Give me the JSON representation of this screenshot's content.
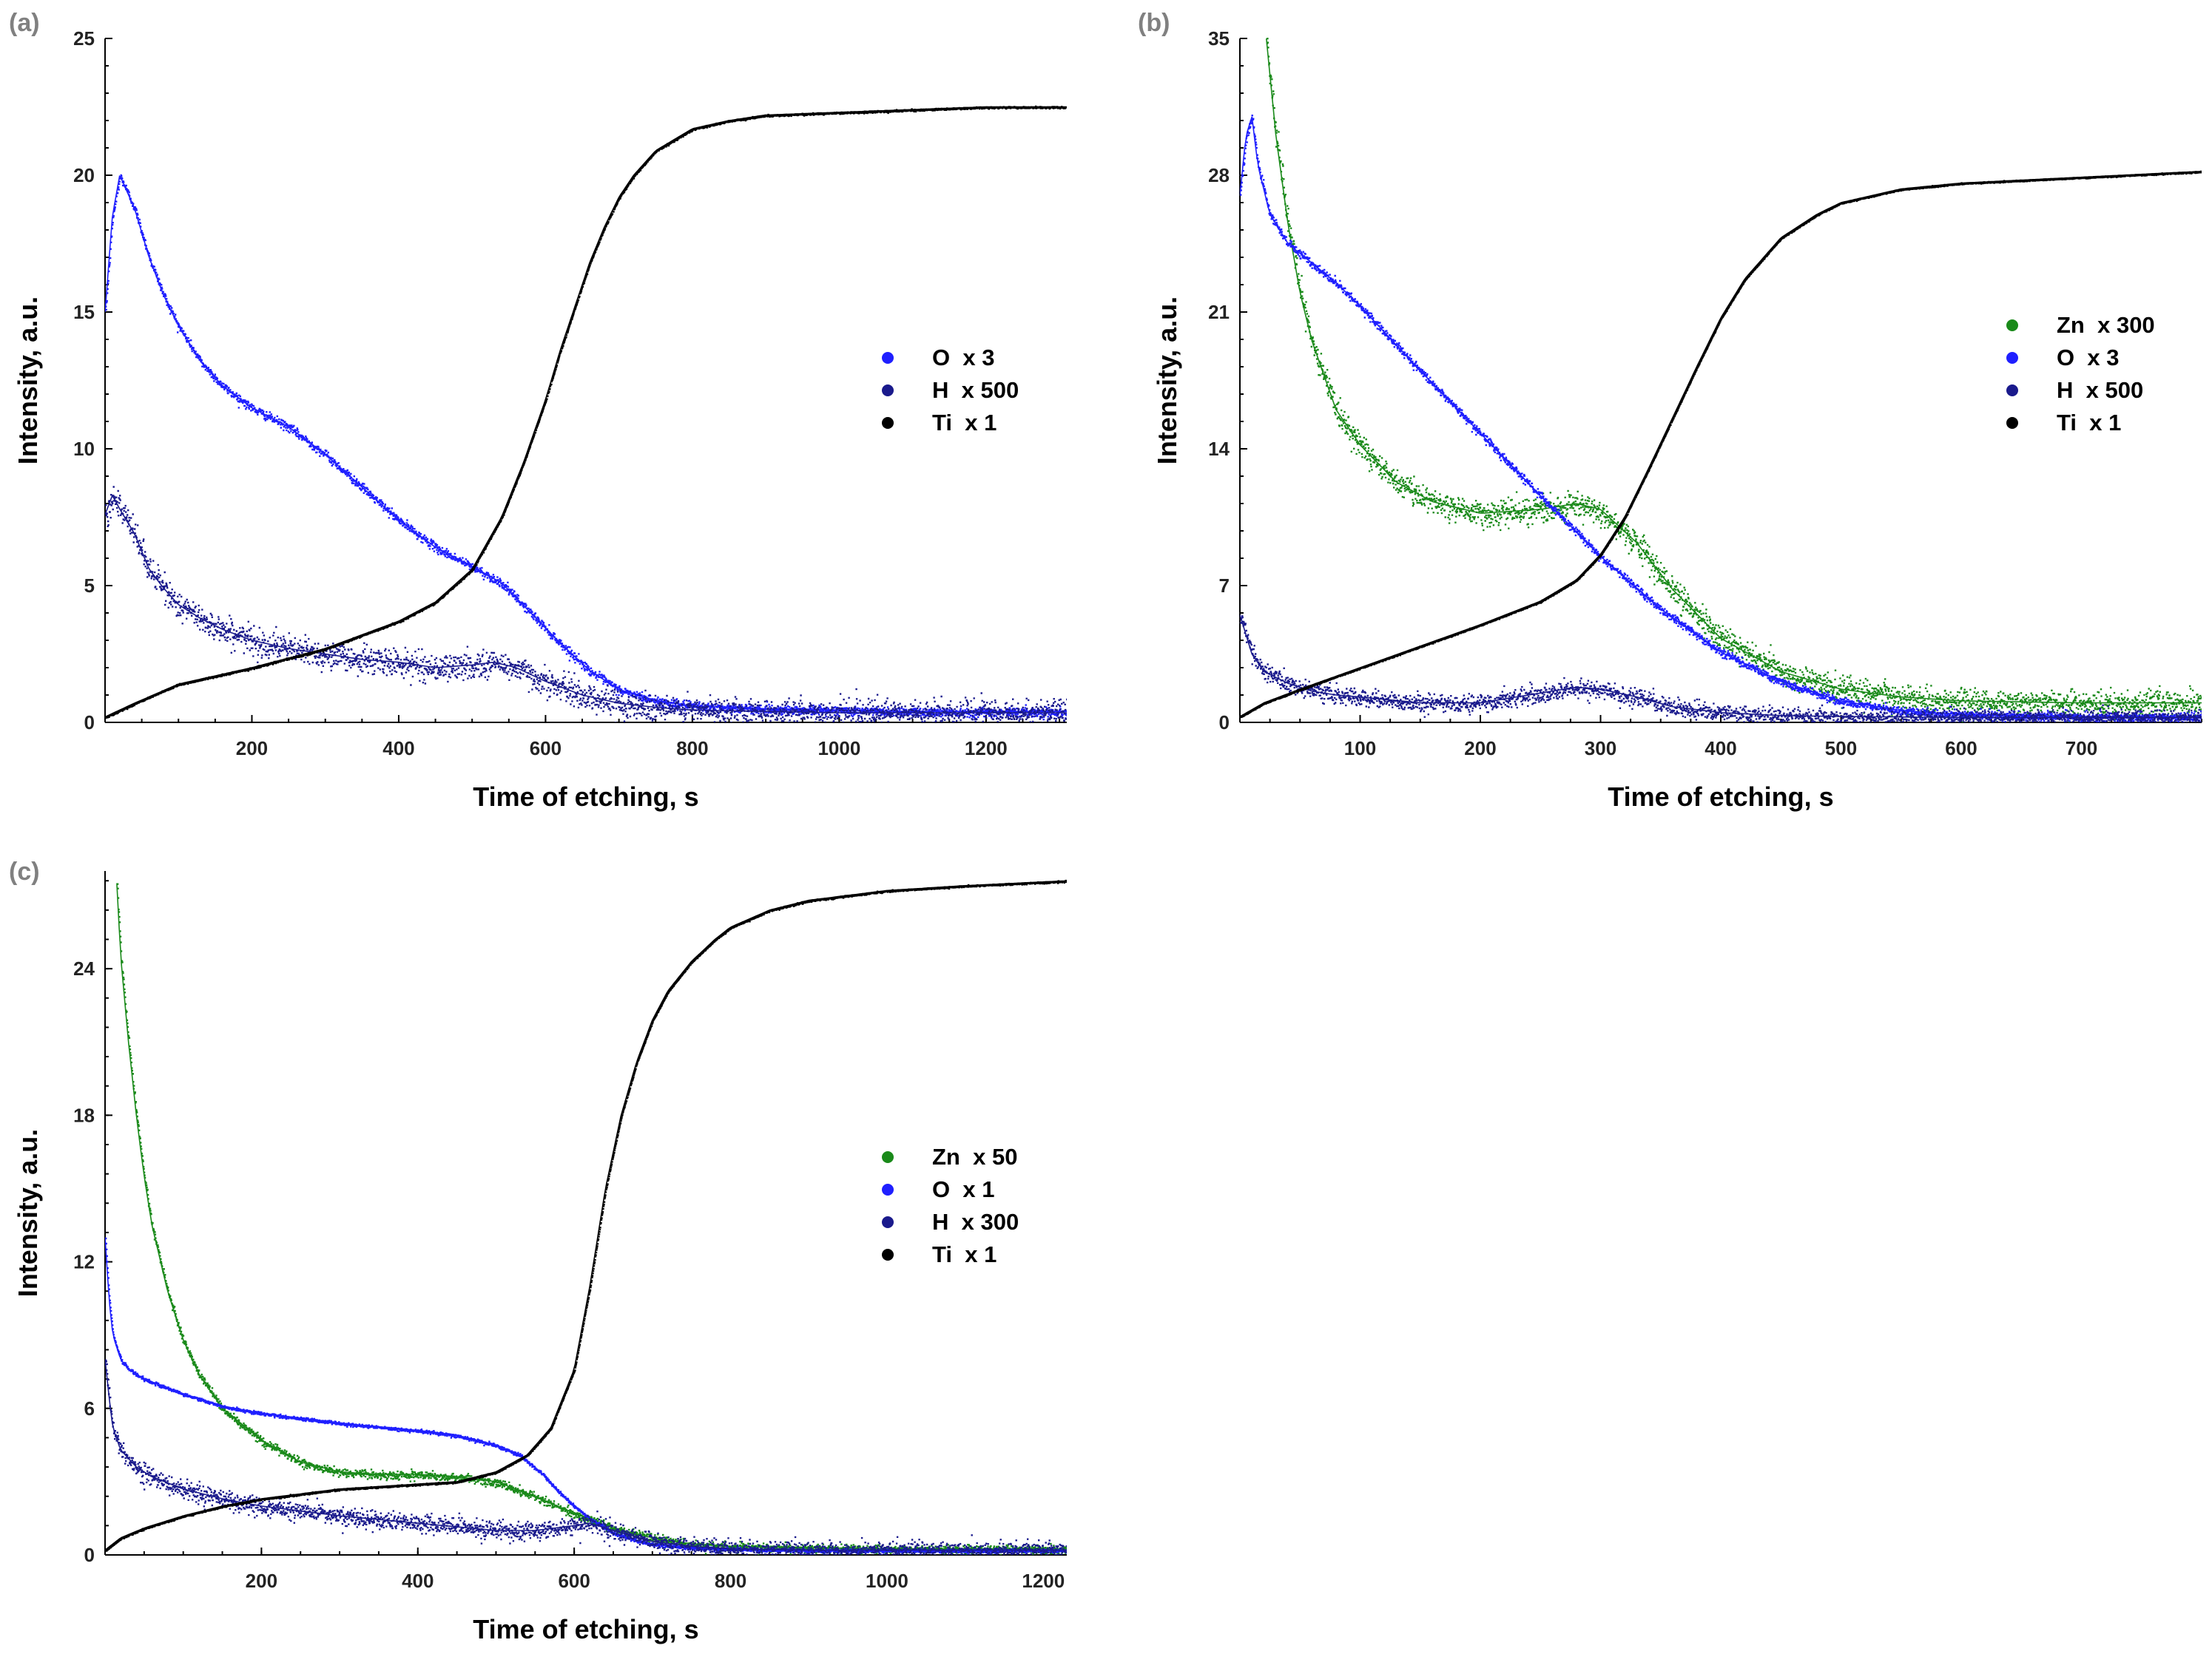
{
  "chart_data": [
    {
      "panel_label": "(a)",
      "type": "scatter",
      "xlabel": "Time of etching, s",
      "ylabel": "Intensity, a.u.",
      "xlim": [
        0,
        1310
      ],
      "ylim": [
        0,
        25
      ],
      "xticks": [
        200,
        400,
        600,
        800,
        1000,
        1200
      ],
      "xtick_labels": [
        "200",
        "400",
        "600",
        "800",
        "1000",
        "1200"
      ],
      "yticks": [
        0,
        5,
        10,
        15,
        20,
        25
      ],
      "ytick_labels": [
        "0",
        "5",
        "10",
        "15",
        "20",
        "25"
      ],
      "legend_position": "right-middle",
      "series": [
        {
          "name": "O  x 3",
          "color": "#1f1fff",
          "noise": 0.15,
          "x": [
            0,
            10,
            20,
            40,
            60,
            80,
            100,
            130,
            160,
            200,
            250,
            300,
            350,
            400,
            450,
            500,
            540,
            580,
            620,
            660,
            700,
            750,
            800,
            900,
            1000,
            1100,
            1200,
            1310
          ],
          "y": [
            15.0,
            18.5,
            20.0,
            18.8,
            17.0,
            15.6,
            14.5,
            13.2,
            12.3,
            11.5,
            10.8,
            9.8,
            8.6,
            7.4,
            6.4,
            5.7,
            5.1,
            4.0,
            2.9,
            1.9,
            1.2,
            0.8,
            0.6,
            0.5,
            0.45,
            0.4,
            0.4,
            0.4
          ]
        },
        {
          "name": "H  x 500",
          "color": "#1a1a8c",
          "noise": 0.45,
          "x": [
            0,
            10,
            20,
            40,
            60,
            80,
            100,
            130,
            160,
            200,
            250,
            300,
            350,
            400,
            450,
            500,
            530,
            560,
            600,
            650,
            700,
            750,
            800,
            900,
            1000,
            1100,
            1200,
            1310
          ],
          "y": [
            7.6,
            8.3,
            7.8,
            6.9,
            5.6,
            4.9,
            4.3,
            3.8,
            3.4,
            3.0,
            2.7,
            2.5,
            2.3,
            2.2,
            2.0,
            2.1,
            2.2,
            2.0,
            1.5,
            1.0,
            0.7,
            0.55,
            0.45,
            0.4,
            0.35,
            0.35,
            0.35,
            0.35
          ]
        },
        {
          "name": "Ti  x 1",
          "color": "#000000",
          "noise": 0.03,
          "x": [
            0,
            40,
            100,
            200,
            300,
            400,
            450,
            500,
            540,
            570,
            600,
            620,
            640,
            660,
            680,
            700,
            720,
            750,
            800,
            850,
            900,
            1000,
            1100,
            1200,
            1310
          ],
          "y": [
            0.2,
            0.7,
            1.4,
            2.0,
            2.7,
            3.7,
            4.4,
            5.6,
            7.5,
            9.5,
            11.8,
            13.6,
            15.2,
            16.8,
            18.1,
            19.2,
            20.0,
            20.9,
            21.7,
            22.0,
            22.2,
            22.3,
            22.4,
            22.5,
            22.5
          ]
        }
      ]
    },
    {
      "panel_label": "(b)",
      "type": "scatter",
      "xlabel": "Time of etching, s",
      "ylabel": "Intensity, a.u.",
      "xlim": [
        0,
        800
      ],
      "ylim": [
        0,
        35
      ],
      "xticks": [
        100,
        200,
        300,
        400,
        500,
        600,
        700
      ],
      "xtick_labels": [
        "100",
        "200",
        "300",
        "400",
        "500",
        "600",
        "700"
      ],
      "yticks": [
        0,
        7,
        14,
        21,
        28,
        35
      ],
      "ytick_labels": [
        "0",
        "7",
        "14",
        "21",
        "28",
        "35"
      ],
      "legend_position": "right-middle",
      "series": [
        {
          "name": "Zn  x 300",
          "color": "#1a8a1a",
          "noise": 0.6,
          "x": [
            22,
            30,
            40,
            50,
            60,
            80,
            100,
            130,
            160,
            200,
            250,
            280,
            300,
            330,
            360,
            400,
            450,
            500,
            550,
            600,
            700,
            800
          ],
          "y": [
            35.0,
            30.0,
            25.5,
            22.0,
            19.5,
            16.0,
            14.2,
            12.3,
            11.3,
            10.7,
            10.9,
            11.2,
            10.9,
            9.2,
            6.8,
            4.3,
            2.6,
            1.7,
            1.3,
            1.1,
            1.0,
            1.0
          ]
        },
        {
          "name": "O  x 3",
          "color": "#1f1fff",
          "noise": 0.2,
          "x": [
            0,
            5,
            10,
            15,
            25,
            40,
            60,
            80,
            100,
            150,
            200,
            250,
            300,
            350,
            400,
            450,
            500,
            550,
            600,
            700,
            800
          ],
          "y": [
            27.0,
            30.0,
            31.0,
            28.5,
            26.0,
            24.5,
            23.5,
            22.5,
            21.3,
            18.0,
            14.8,
            11.6,
            8.5,
            5.8,
            3.6,
            2.1,
            1.1,
            0.6,
            0.4,
            0.3,
            0.3
          ]
        },
        {
          "name": "H  x 500",
          "color": "#1a1a8c",
          "noise": 0.4,
          "x": [
            0,
            5,
            10,
            20,
            40,
            60,
            80,
            100,
            150,
            200,
            250,
            280,
            300,
            330,
            360,
            400,
            450,
            500,
            600,
            700,
            800
          ],
          "y": [
            5.5,
            4.5,
            3.5,
            2.6,
            2.0,
            1.6,
            1.4,
            1.3,
            1.0,
            1.0,
            1.5,
            1.8,
            1.7,
            1.3,
            0.8,
            0.5,
            0.35,
            0.3,
            0.25,
            0.25,
            0.25
          ]
        },
        {
          "name": "Ti  x 1",
          "color": "#000000",
          "noise": 0.03,
          "x": [
            0,
            20,
            50,
            100,
            150,
            200,
            250,
            280,
            300,
            320,
            340,
            360,
            380,
            400,
            420,
            450,
            480,
            500,
            550,
            600,
            700,
            800
          ],
          "y": [
            0.3,
            1.0,
            1.7,
            2.8,
            3.9,
            5.0,
            6.2,
            7.3,
            8.6,
            10.5,
            13.0,
            15.6,
            18.2,
            20.7,
            22.7,
            24.8,
            26.0,
            26.6,
            27.3,
            27.6,
            27.9,
            28.2
          ]
        }
      ]
    },
    {
      "panel_label": "(c)",
      "type": "scatter",
      "xlabel": "Time of etching, s",
      "ylabel": "Intensity, a.u.",
      "xlim": [
        0,
        1230
      ],
      "ylim": [
        0,
        28
      ],
      "xticks": [
        200,
        400,
        600,
        800,
        1000,
        1200
      ],
      "xtick_labels": [
        "200",
        "400",
        "600",
        "800",
        "1000",
        "1200"
      ],
      "yticks": [
        0,
        6,
        12,
        18,
        24
      ],
      "ytick_labels": [
        "0",
        "6",
        "12",
        "18",
        "24"
      ],
      "legend_position": "right-middle",
      "series": [
        {
          "name": "Zn  x 50",
          "color": "#1a8a1a",
          "noise": 0.15,
          "x": [
            15,
            20,
            30,
            40,
            50,
            60,
            80,
            100,
            120,
            150,
            200,
            250,
            300,
            350,
            400,
            450,
            500,
            550,
            600,
            650,
            700,
            750,
            800,
            900,
            1000,
            1100,
            1230
          ],
          "y": [
            27.5,
            24.5,
            21.0,
            18.0,
            15.5,
            13.5,
            10.8,
            8.8,
            7.4,
            6.0,
            4.7,
            3.8,
            3.4,
            3.3,
            3.3,
            3.2,
            3.0,
            2.4,
            1.7,
            1.1,
            0.7,
            0.45,
            0.35,
            0.3,
            0.25,
            0.25,
            0.25
          ]
        },
        {
          "name": "O  x 1",
          "color": "#1f1fff",
          "noise": 0.06,
          "x": [
            0,
            5,
            10,
            20,
            30,
            50,
            100,
            150,
            200,
            300,
            400,
            450,
            500,
            530,
            560,
            580,
            600,
            620,
            650,
            680,
            700,
            750,
            800,
            900,
            1000,
            1230
          ],
          "y": [
            13.0,
            10.5,
            9.0,
            8.0,
            7.6,
            7.2,
            6.6,
            6.1,
            5.8,
            5.4,
            5.1,
            4.9,
            4.5,
            4.1,
            3.3,
            2.6,
            2.0,
            1.5,
            0.9,
            0.6,
            0.45,
            0.3,
            0.25,
            0.2,
            0.2,
            0.2
          ]
        },
        {
          "name": "H  x 300",
          "color": "#1a1a8c",
          "noise": 0.35,
          "x": [
            0,
            5,
            10,
            20,
            40,
            60,
            100,
            150,
            200,
            300,
            400,
            500,
            550,
            600,
            620,
            650,
            700,
            750,
            800,
            900,
            1000,
            1230
          ],
          "y": [
            8.0,
            6.5,
            5.2,
            4.3,
            3.6,
            3.2,
            2.7,
            2.3,
            2.0,
            1.6,
            1.3,
            1.0,
            1.0,
            1.2,
            1.3,
            1.0,
            0.55,
            0.35,
            0.25,
            0.2,
            0.2,
            0.2
          ]
        },
        {
          "name": "Ti  x 1",
          "color": "#000000",
          "noise": 0.03,
          "x": [
            0,
            20,
            50,
            100,
            150,
            200,
            300,
            400,
            450,
            500,
            540,
            570,
            600,
            620,
            640,
            660,
            680,
            700,
            720,
            750,
            780,
            800,
            850,
            900,
            1000,
            1100,
            1230
          ],
          "y": [
            0.2,
            0.7,
            1.1,
            1.6,
            2.0,
            2.3,
            2.7,
            2.9,
            3.0,
            3.4,
            4.1,
            5.2,
            7.6,
            11.0,
            15.0,
            18.0,
            20.2,
            21.9,
            23.1,
            24.3,
            25.2,
            25.7,
            26.4,
            26.8,
            27.2,
            27.4,
            27.6
          ]
        }
      ]
    }
  ]
}
